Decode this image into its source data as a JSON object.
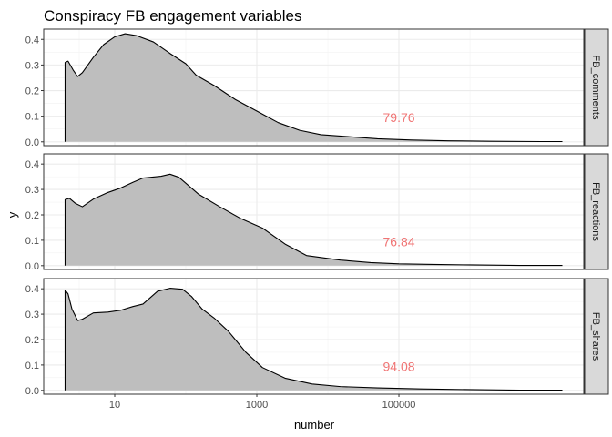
{
  "chart_data": {
    "type": "area",
    "title": "Conspiracy FB engagement variables",
    "xlabel": "number",
    "ylabel": "y",
    "x_scale": "log10",
    "x_ticks": [
      {
        "value": 10,
        "label": "10"
      },
      {
        "value": 1000,
        "label": "1000"
      },
      {
        "value": 100000,
        "label": "100000"
      }
    ],
    "xlim": [
      1,
      40000000
    ],
    "ylim": [
      -0.015,
      0.44
    ],
    "y_ticks": [
      0.0,
      0.1,
      0.2,
      0.3,
      0.4
    ],
    "y_tick_labels": [
      "0.0",
      "0.1",
      "0.2",
      "0.3",
      "0.4"
    ],
    "grid": true,
    "fill_color": "#bebebe",
    "line_color": "#000000",
    "annotation_color": "#f07474",
    "strip_fill": "#d9d9d9",
    "panels": [
      {
        "strip_label": "FB_comments",
        "annotation": "79.76",
        "annotation_x": 100000,
        "annotation_y": 0.095,
        "points": [
          [
            2,
            0.31
          ],
          [
            2.2,
            0.315
          ],
          [
            2.6,
            0.28
          ],
          [
            3,
            0.255
          ],
          [
            3.5,
            0.27
          ],
          [
            5,
            0.33
          ],
          [
            7,
            0.38
          ],
          [
            10,
            0.41
          ],
          [
            14,
            0.422
          ],
          [
            20,
            0.415
          ],
          [
            35,
            0.39
          ],
          [
            60,
            0.345
          ],
          [
            100,
            0.305
          ],
          [
            140,
            0.26
          ],
          [
            250,
            0.22
          ],
          [
            500,
            0.165
          ],
          [
            1000,
            0.12
          ],
          [
            2000,
            0.075
          ],
          [
            4000,
            0.045
          ],
          [
            8000,
            0.028
          ],
          [
            20000,
            0.02
          ],
          [
            50000,
            0.012
          ],
          [
            150000,
            0.007
          ],
          [
            500000,
            0.004
          ],
          [
            2000000,
            0.002
          ],
          [
            10000000,
            0.001
          ],
          [
            20000000,
            0.001
          ]
        ]
      },
      {
        "strip_label": "FB_reactions",
        "annotation": "76.84",
        "annotation_x": 100000,
        "annotation_y": 0.095,
        "points": [
          [
            2,
            0.26
          ],
          [
            2.3,
            0.265
          ],
          [
            2.8,
            0.245
          ],
          [
            3.5,
            0.232
          ],
          [
            5,
            0.262
          ],
          [
            8,
            0.288
          ],
          [
            12,
            0.305
          ],
          [
            18,
            0.328
          ],
          [
            25,
            0.345
          ],
          [
            45,
            0.352
          ],
          [
            60,
            0.36
          ],
          [
            80,
            0.348
          ],
          [
            150,
            0.282
          ],
          [
            300,
            0.232
          ],
          [
            600,
            0.185
          ],
          [
            1200,
            0.148
          ],
          [
            2500,
            0.085
          ],
          [
            5000,
            0.04
          ],
          [
            15000,
            0.022
          ],
          [
            40000,
            0.012
          ],
          [
            100000,
            0.007
          ],
          [
            300000,
            0.005
          ],
          [
            1000000,
            0.003
          ],
          [
            5000000,
            0.001
          ],
          [
            20000000,
            0.001
          ]
        ]
      },
      {
        "strip_label": "FB_shares",
        "annotation": "94.08",
        "annotation_x": 100000,
        "annotation_y": 0.095,
        "points": [
          [
            2,
            0.395
          ],
          [
            2.2,
            0.38
          ],
          [
            2.5,
            0.32
          ],
          [
            3,
            0.275
          ],
          [
            3.5,
            0.28
          ],
          [
            5,
            0.305
          ],
          [
            8,
            0.308
          ],
          [
            12,
            0.315
          ],
          [
            18,
            0.33
          ],
          [
            25,
            0.34
          ],
          [
            40,
            0.39
          ],
          [
            60,
            0.402
          ],
          [
            90,
            0.398
          ],
          [
            120,
            0.37
          ],
          [
            170,
            0.32
          ],
          [
            250,
            0.285
          ],
          [
            400,
            0.232
          ],
          [
            700,
            0.15
          ],
          [
            1200,
            0.09
          ],
          [
            2500,
            0.048
          ],
          [
            6000,
            0.025
          ],
          [
            15000,
            0.015
          ],
          [
            50000,
            0.01
          ],
          [
            200000,
            0.006
          ],
          [
            1000000,
            0.003
          ],
          [
            5000000,
            0.001
          ],
          [
            20000000,
            0.001
          ]
        ]
      }
    ]
  }
}
